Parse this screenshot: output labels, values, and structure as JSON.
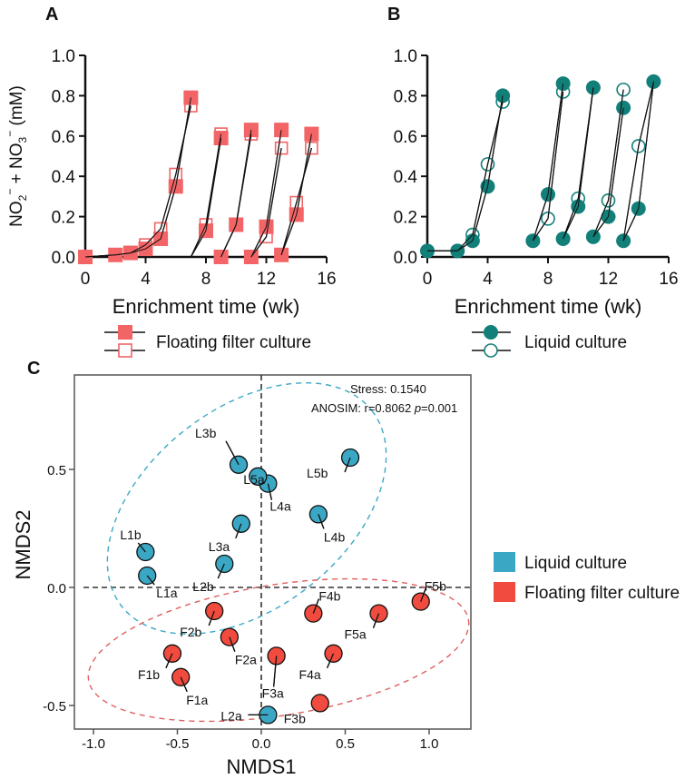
{
  "chart_data": [
    {
      "panel": "A",
      "type": "line",
      "xlabel": "Enrichment time (wk)",
      "ylabel": "NO2- + NO3- (mM)",
      "xlim": [
        0,
        16
      ],
      "ylim": [
        0,
        1.0
      ],
      "xticks": [
        "0",
        "4",
        "8",
        "12",
        "16"
      ],
      "yticks": [
        "0.0",
        "0.2",
        "0.4",
        "0.6",
        "0.8",
        "1.0"
      ],
      "color": "#f26466",
      "legend": "Floating filter culture",
      "series": [
        {
          "name": "replicate a (filled)",
          "marker": "filled-square",
          "segments": [
            [
              [
                0,
                0
              ],
              [
                2,
                0.01
              ],
              [
                3,
                0.02
              ],
              [
                4,
                0.04
              ],
              [
                5,
                0.09
              ],
              [
                6,
                0.35
              ],
              [
                7,
                0.79
              ]
            ],
            [
              [
                7,
                0
              ],
              [
                8,
                0.13
              ],
              [
                9,
                0.59
              ]
            ],
            [
              [
                9,
                0
              ],
              [
                10,
                0.16
              ],
              [
                11,
                0.63
              ]
            ],
            [
              [
                11,
                0
              ],
              [
                12,
                0.15
              ],
              [
                13,
                0.63
              ]
            ],
            [
              [
                13,
                0.01
              ],
              [
                14,
                0.21
              ],
              [
                15,
                0.61
              ]
            ]
          ]
        },
        {
          "name": "replicate b (open)",
          "marker": "open-square",
          "segments": [
            [
              [
                0,
                0
              ],
              [
                2,
                0.01
              ],
              [
                3,
                0.02
              ],
              [
                4,
                0.06
              ],
              [
                5,
                0.14
              ],
              [
                6,
                0.41
              ],
              [
                7,
                0.75
              ]
            ],
            [
              [
                7,
                0
              ],
              [
                8,
                0.16
              ],
              [
                9,
                0.61
              ]
            ],
            [
              [
                9,
                0
              ],
              [
                10,
                0.16
              ],
              [
                11,
                0.61
              ]
            ],
            [
              [
                11,
                0
              ],
              [
                12,
                0.1
              ],
              [
                13,
                0.54
              ]
            ],
            [
              [
                13,
                0.01
              ],
              [
                14,
                0.27
              ],
              [
                15,
                0.54
              ]
            ]
          ]
        }
      ]
    },
    {
      "panel": "B",
      "type": "line",
      "xlabel": "Enrichment time (wk)",
      "xlim": [
        0,
        16
      ],
      "ylim": [
        0,
        1.0
      ],
      "xticks": [
        "0",
        "4",
        "8",
        "12",
        "16"
      ],
      "yticks": [
        "0.0",
        "0.2",
        "0.4",
        "0.6",
        "0.8",
        "1.0"
      ],
      "color": "#127f79",
      "legend": "Liquid culture",
      "series": [
        {
          "name": "replicate a (filled)",
          "marker": "filled-circle",
          "segments": [
            [
              [
                0,
                0.03
              ],
              [
                2,
                0.03
              ],
              [
                3,
                0.08
              ],
              [
                4,
                0.35
              ],
              [
                5,
                0.8
              ]
            ],
            [
              [
                7,
                0.08
              ],
              [
                8,
                0.31
              ],
              [
                9,
                0.86
              ]
            ],
            [
              [
                9,
                0.09
              ],
              [
                10,
                0.25
              ],
              [
                11,
                0.84
              ]
            ],
            [
              [
                11,
                0.1
              ],
              [
                12,
                0.2
              ],
              [
                13,
                0.74
              ]
            ],
            [
              [
                13,
                0.08
              ],
              [
                14,
                0.24
              ],
              [
                15,
                0.87
              ]
            ]
          ]
        },
        {
          "name": "replicate b (open)",
          "marker": "open-circle",
          "segments": [
            [
              [
                0,
                0.03
              ],
              [
                2,
                0.03
              ],
              [
                3,
                0.11
              ],
              [
                4,
                0.46
              ],
              [
                5,
                0.77
              ]
            ],
            [
              [
                7,
                0.08
              ],
              [
                8,
                0.19
              ],
              [
                9,
                0.82
              ]
            ],
            [
              [
                9,
                0.09
              ],
              [
                10,
                0.29
              ],
              [
                11,
                0.84
              ]
            ],
            [
              [
                11,
                0.1
              ],
              [
                12,
                0.28
              ],
              [
                13,
                0.83
              ]
            ],
            [
              [
                13,
                0.08
              ],
              [
                14,
                0.55
              ],
              [
                15,
                0.87
              ]
            ]
          ]
        }
      ]
    },
    {
      "panel": "C",
      "type": "scatter",
      "xlabel": "NMDS1",
      "ylabel": "NMDS2",
      "xlim": [
        -1.1,
        1.25
      ],
      "ylim": [
        -0.6,
        0.9
      ],
      "xticks": [
        "-1.0",
        "-0.5",
        "0.0",
        "0.5",
        "1.0"
      ],
      "yticks": [
        "-0.5",
        "0.0",
        "0.5"
      ],
      "stress": "Stress: 0.1540",
      "anosim_prefix": "ANOSIM: r=0.8062 ",
      "anosim_p_italic": "p",
      "anosim_suffix": "=0.001",
      "legend": [
        {
          "label": "Liquid culture",
          "color": "#3aa8c4"
        },
        {
          "label": "Floating filter culture",
          "color": "#f04b3e"
        }
      ],
      "points": [
        {
          "label": "L1a",
          "group": "Liquid culture",
          "x": -0.68,
          "y": 0.05
        },
        {
          "label": "L1b",
          "group": "Liquid culture",
          "x": -0.69,
          "y": 0.15
        },
        {
          "label": "L2a",
          "group": "Liquid culture",
          "x": 0.04,
          "y": -0.54
        },
        {
          "label": "L2b",
          "group": "Liquid culture",
          "x": -0.22,
          "y": 0.1
        },
        {
          "label": "L3a",
          "group": "Liquid culture",
          "x": -0.12,
          "y": 0.27
        },
        {
          "label": "L3b",
          "group": "Liquid culture",
          "x": -0.135,
          "y": 0.52
        },
        {
          "label": "L4a",
          "group": "Liquid culture",
          "x": 0.04,
          "y": 0.44
        },
        {
          "label": "L4b",
          "group": "Liquid culture",
          "x": 0.34,
          "y": 0.31
        },
        {
          "label": "L5a",
          "group": "Liquid culture",
          "x": -0.02,
          "y": 0.47
        },
        {
          "label": "L5b",
          "group": "Liquid culture",
          "x": 0.53,
          "y": 0.55
        },
        {
          "label": "F1a",
          "group": "Floating filter culture",
          "x": -0.48,
          "y": -0.38
        },
        {
          "label": "F1b",
          "group": "Floating filter culture",
          "x": -0.53,
          "y": -0.28
        },
        {
          "label": "F2a",
          "group": "Floating filter culture",
          "x": -0.19,
          "y": -0.21
        },
        {
          "label": "F2b",
          "group": "Floating filter culture",
          "x": -0.28,
          "y": -0.1
        },
        {
          "label": "F3a",
          "group": "Floating filter culture",
          "x": 0.09,
          "y": -0.29
        },
        {
          "label": "F3b",
          "group": "Floating filter culture",
          "x": 0.35,
          "y": -0.49
        },
        {
          "label": "F4a",
          "group": "Floating filter culture",
          "x": 0.43,
          "y": -0.28
        },
        {
          "label": "F4b",
          "group": "Floating filter culture",
          "x": 0.31,
          "y": -0.11
        },
        {
          "label": "F5a",
          "group": "Floating filter culture",
          "x": 0.7,
          "y": -0.11
        },
        {
          "label": "F5b",
          "group": "Floating filter culture",
          "x": 0.95,
          "y": -0.06
        }
      ]
    }
  ],
  "panel_labels": {
    "a": "A",
    "b": "B",
    "c": "C"
  }
}
